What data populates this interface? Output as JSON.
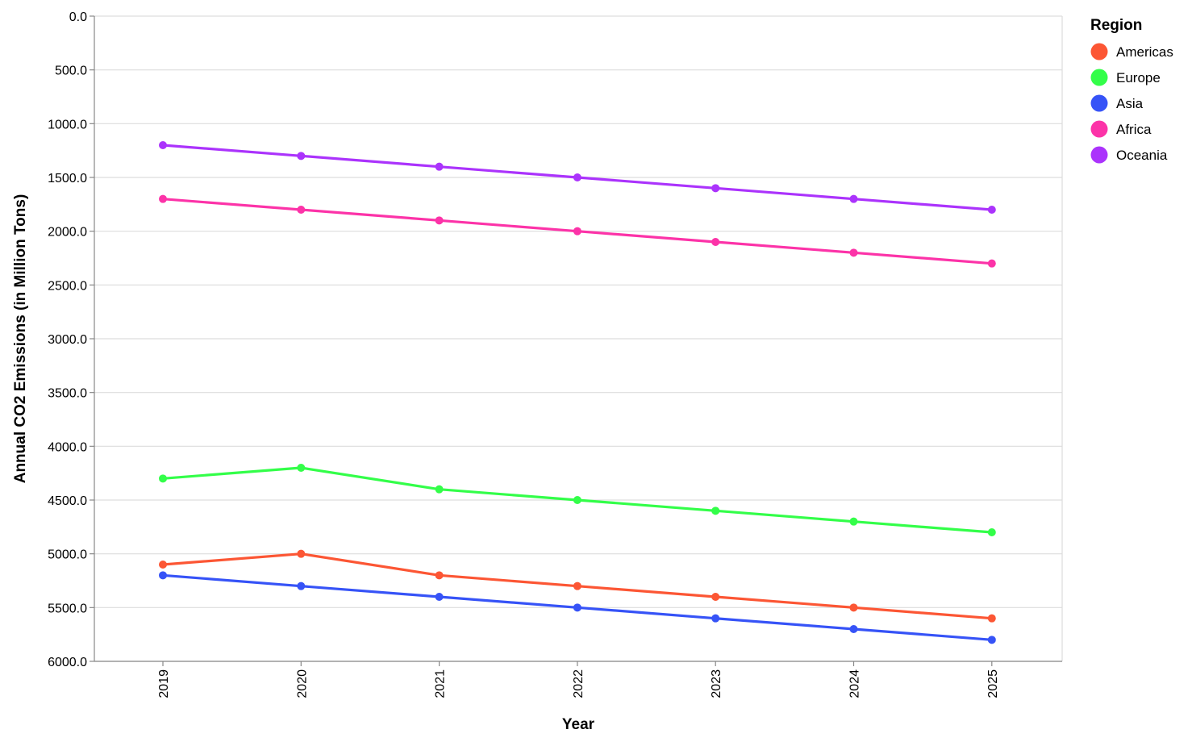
{
  "chart_data": {
    "type": "line",
    "title": "",
    "xlabel": "Year",
    "ylabel": "Annual CO2 Emissions (in Million Tons)",
    "x": [
      "2019",
      "2020",
      "2021",
      "2022",
      "2023",
      "2024",
      "2025"
    ],
    "y_ticks": [
      "0.0",
      "500.0",
      "1000.0",
      "1500.0",
      "2000.0",
      "2500.0",
      "3000.0",
      "3500.0",
      "4000.0",
      "4500.0",
      "5000.0",
      "5500.0",
      "6000.0"
    ],
    "ylim": [
      0,
      6000
    ],
    "y_reversed": true,
    "grid": true,
    "legend": {
      "title": "Region",
      "placement": "top-right"
    },
    "series": [
      {
        "name": "Americas",
        "color": "#fc5634",
        "values": [
          5100,
          5000,
          5200,
          5300,
          5400,
          5500,
          5600
        ]
      },
      {
        "name": "Europe",
        "color": "#33fe49",
        "values": [
          4300,
          4200,
          4400,
          4500,
          4600,
          4700,
          4800
        ]
      },
      {
        "name": "Asia",
        "color": "#3653f7",
        "values": [
          5200,
          5300,
          5400,
          5500,
          5600,
          5700,
          5800
        ]
      },
      {
        "name": "Africa",
        "color": "#fc33a8",
        "values": [
          1700,
          1800,
          1900,
          2000,
          2100,
          2200,
          2300
        ]
      },
      {
        "name": "Oceania",
        "color": "#ab33fc",
        "values": [
          1200,
          1300,
          1400,
          1500,
          1600,
          1700,
          1800
        ]
      }
    ]
  }
}
